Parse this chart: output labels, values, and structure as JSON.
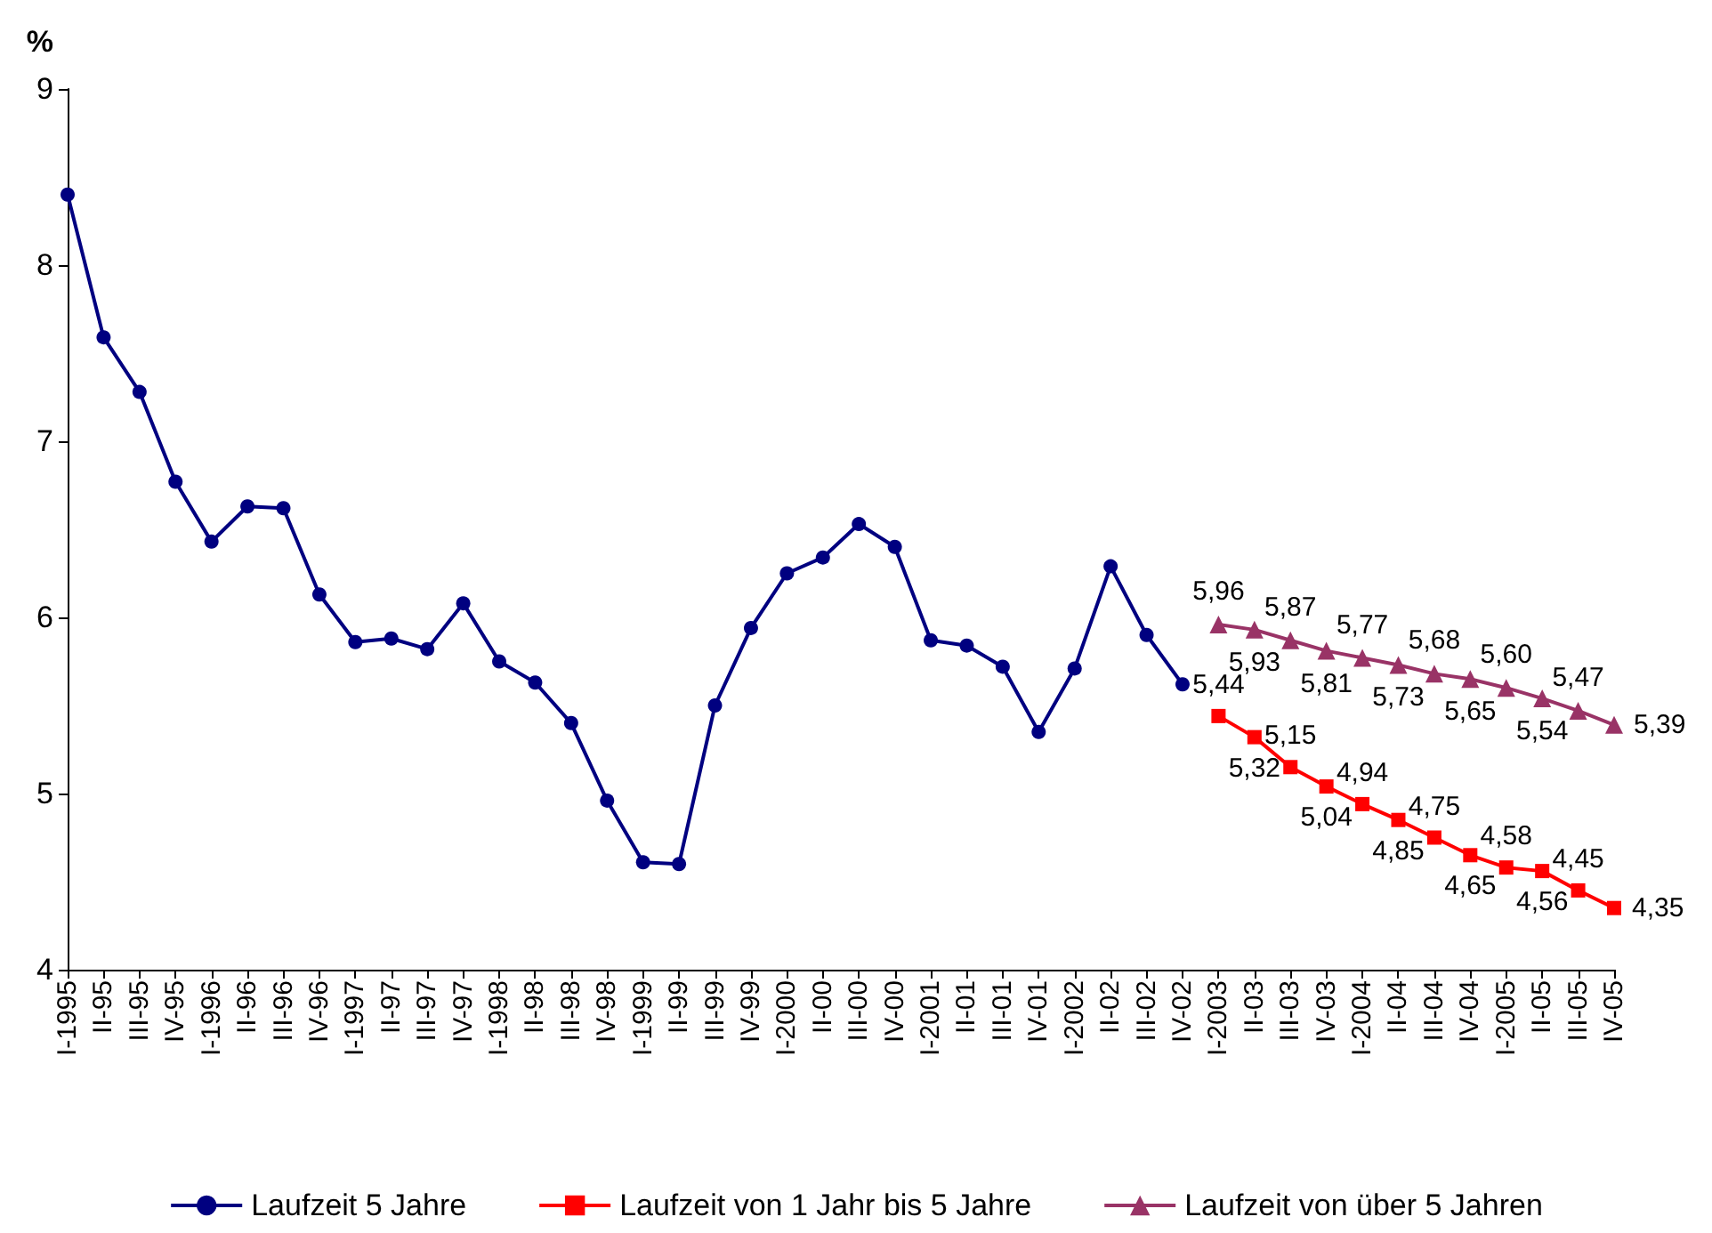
{
  "chart_data": {
    "type": "line",
    "ylabel": "%",
    "ylim": [
      4,
      9
    ],
    "yticks": [
      4,
      5,
      6,
      7,
      8,
      9
    ],
    "grid": false,
    "legend": "bottom",
    "categories": [
      "I-1995",
      "II-95",
      "III-95",
      "IV-95",
      "I-1996",
      "II-96",
      "III-96",
      "IV-96",
      "I-1997",
      "II-97",
      "III-97",
      "IV-97",
      "I-1998",
      "II-98",
      "III-98",
      "IV-98",
      "I-1999",
      "II-99",
      "III-99",
      "IV-99",
      "I-2000",
      "II-00",
      "III-00",
      "IV-00",
      "I-2001",
      "II-01",
      "III-01",
      "IV-01",
      "I-2002",
      "II-02",
      "III-02",
      "IV-02",
      "I-2003",
      "II-03",
      "III-03",
      "IV-03",
      "I-2004",
      "II-04",
      "III-04",
      "IV-04",
      "I-2005",
      "II-05",
      "III-05",
      "IV-05"
    ],
    "series": [
      {
        "name": "Laufzeit 5 Jahre",
        "color": "#000080",
        "marker": "circle",
        "values": [
          8.4,
          7.59,
          7.28,
          6.77,
          6.43,
          6.63,
          6.62,
          6.13,
          5.86,
          5.88,
          5.82,
          6.08,
          5.75,
          5.63,
          5.4,
          4.96,
          4.61,
          4.6,
          5.5,
          5.94,
          6.25,
          6.34,
          6.53,
          6.4,
          5.87,
          5.84,
          5.72,
          5.35,
          5.71,
          6.29,
          5.9,
          5.62,
          null,
          null,
          null,
          null,
          null,
          null,
          null,
          null,
          null,
          null,
          null,
          null
        ]
      },
      {
        "name": "Laufzeit von 1 Jahr bis 5 Jahre",
        "color": "#ff0000",
        "marker": "square",
        "values": [
          null,
          null,
          null,
          null,
          null,
          null,
          null,
          null,
          null,
          null,
          null,
          null,
          null,
          null,
          null,
          null,
          null,
          null,
          null,
          null,
          null,
          null,
          null,
          null,
          null,
          null,
          null,
          null,
          null,
          null,
          null,
          null,
          5.44,
          5.32,
          5.15,
          5.04,
          4.94,
          4.85,
          4.75,
          4.65,
          4.58,
          4.56,
          4.45,
          4.35
        ],
        "value_labels": [
          null,
          null,
          null,
          null,
          null,
          null,
          null,
          null,
          null,
          null,
          null,
          null,
          null,
          null,
          null,
          null,
          null,
          null,
          null,
          null,
          null,
          null,
          null,
          null,
          null,
          null,
          null,
          null,
          null,
          null,
          null,
          null,
          "5,44",
          "5,32",
          "5,15",
          "5,04",
          "4,94",
          "4,85",
          "4,75",
          "4,65",
          "4,58",
          "4,56",
          "4,45",
          "4,35"
        ]
      },
      {
        "name": "Laufzeit von über 5 Jahren",
        "color": "#993366",
        "marker": "triangle",
        "values": [
          null,
          null,
          null,
          null,
          null,
          null,
          null,
          null,
          null,
          null,
          null,
          null,
          null,
          null,
          null,
          null,
          null,
          null,
          null,
          null,
          null,
          null,
          null,
          null,
          null,
          null,
          null,
          null,
          null,
          null,
          null,
          null,
          5.96,
          5.93,
          5.87,
          5.81,
          5.77,
          5.73,
          5.68,
          5.65,
          5.6,
          5.54,
          5.47,
          5.39
        ],
        "value_labels": [
          null,
          null,
          null,
          null,
          null,
          null,
          null,
          null,
          null,
          null,
          null,
          null,
          null,
          null,
          null,
          null,
          null,
          null,
          null,
          null,
          null,
          null,
          null,
          null,
          null,
          null,
          null,
          null,
          null,
          null,
          null,
          null,
          "5,96",
          "5,93",
          "5,87",
          "5,81",
          "5,77",
          "5,73",
          "5,68",
          "5,65",
          "5,60",
          "5,54",
          "5,47",
          "5,39"
        ]
      }
    ]
  }
}
